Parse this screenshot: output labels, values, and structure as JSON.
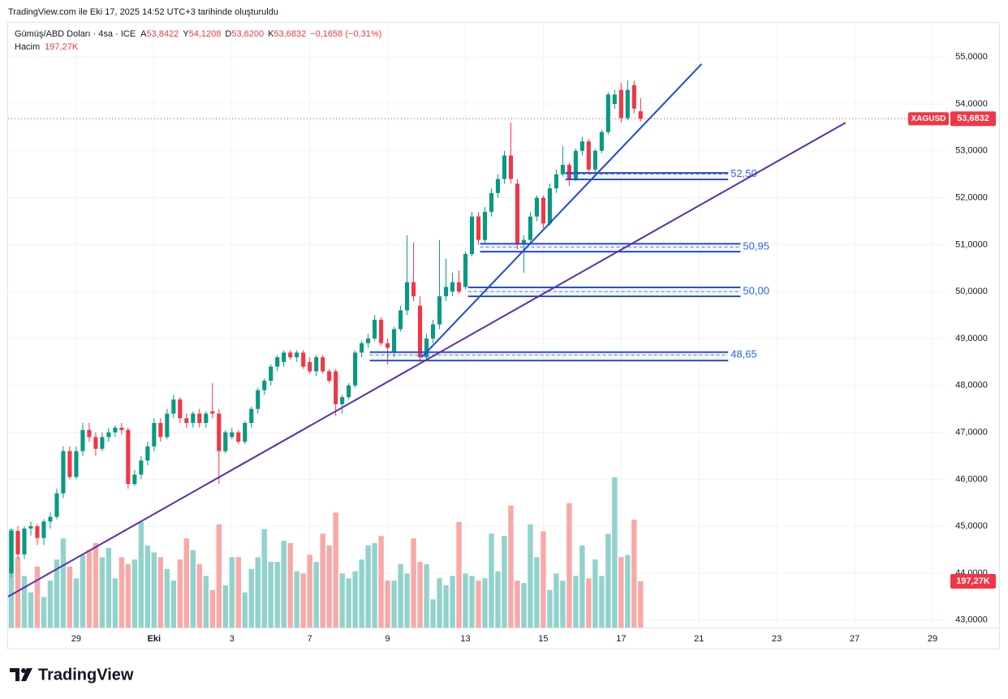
{
  "header": {
    "caption": "TradingView.com ile Eki 17, 2025 14:52 UTC+3 tarihinde oluşturuldu"
  },
  "footer": {
    "brand": "TradingView"
  },
  "chart_data": {
    "type": "candlestick",
    "legend": {
      "symbol": "Gümüş/ABD Doları · 4sa · ICE",
      "fields": [
        {
          "key": "A",
          "value": "53,8422"
        },
        {
          "key": "Y",
          "value": "54,1208"
        },
        {
          "key": "D",
          "value": "53,6200"
        },
        {
          "key": "K",
          "value": "53,6832"
        }
      ],
      "change": "−0,1658 (−0,31%)",
      "volume_key": "Hacim"
    },
    "up_color": "#089981",
    "down_color": "#f23645",
    "volume_up_color": "#92d2cc",
    "volume_down_color": "#f7a9a7",
    "candles": [
      [
        44.0,
        44.95,
        43.9,
        44.9
      ],
      [
        44.9,
        45.0,
        44.3,
        44.4
      ],
      [
        44.4,
        45.0,
        44.3,
        44.95
      ],
      [
        44.95,
        45.1,
        44.8,
        45.0
      ],
      [
        45.0,
        45.05,
        44.6,
        44.75
      ],
      [
        44.75,
        45.15,
        44.6,
        45.1
      ],
      [
        45.1,
        45.3,
        44.95,
        45.2
      ],
      [
        45.2,
        45.8,
        45.15,
        45.7
      ],
      [
        45.7,
        46.7,
        45.6,
        46.6
      ],
      [
        46.6,
        46.7,
        46.0,
        46.05
      ],
      [
        46.05,
        46.7,
        46.0,
        46.6
      ],
      [
        46.6,
        47.2,
        46.5,
        47.05
      ],
      [
        47.05,
        47.2,
        46.8,
        46.9
      ],
      [
        46.9,
        47.0,
        46.5,
        46.65
      ],
      [
        46.65,
        47.0,
        46.6,
        46.9
      ],
      [
        46.9,
        47.1,
        46.8,
        47.0
      ],
      [
        47.0,
        47.15,
        46.9,
        47.1
      ],
      [
        47.1,
        47.2,
        46.95,
        47.05
      ],
      [
        47.05,
        47.1,
        45.8,
        45.9
      ],
      [
        45.9,
        46.2,
        45.85,
        46.1
      ],
      [
        46.1,
        46.5,
        46.0,
        46.4
      ],
      [
        46.4,
        46.8,
        46.3,
        46.7
      ],
      [
        46.7,
        47.3,
        46.6,
        47.2
      ],
      [
        47.2,
        47.3,
        46.8,
        46.9
      ],
      [
        46.9,
        47.5,
        46.85,
        47.4
      ],
      [
        47.4,
        47.8,
        47.3,
        47.7
      ],
      [
        47.7,
        47.75,
        47.2,
        47.3
      ],
      [
        47.3,
        47.4,
        47.1,
        47.2
      ],
      [
        47.2,
        47.45,
        47.1,
        47.4
      ],
      [
        47.4,
        47.5,
        47.1,
        47.2
      ],
      [
        47.2,
        47.45,
        47.1,
        47.4
      ],
      [
        47.45,
        48.05,
        47.3,
        47.4
      ],
      [
        47.4,
        47.5,
        45.9,
        46.6
      ],
      [
        46.6,
        47.05,
        46.55,
        47.0
      ],
      [
        46.9,
        47.1,
        46.85,
        47.0
      ],
      [
        47.0,
        47.05,
        46.75,
        46.8
      ],
      [
        46.8,
        47.25,
        46.75,
        47.2
      ],
      [
        47.2,
        47.55,
        47.1,
        47.5
      ],
      [
        47.5,
        47.95,
        47.4,
        47.9
      ],
      [
        47.9,
        48.15,
        47.8,
        48.1
      ],
      [
        48.1,
        48.45,
        48.0,
        48.4
      ],
      [
        48.4,
        48.65,
        48.3,
        48.6
      ],
      [
        48.5,
        48.75,
        48.4,
        48.7
      ],
      [
        48.7,
        48.75,
        48.55,
        48.6
      ],
      [
        48.6,
        48.75,
        48.5,
        48.7
      ],
      [
        48.7,
        48.75,
        48.35,
        48.4
      ],
      [
        48.5,
        48.6,
        48.25,
        48.3
      ],
      [
        48.3,
        48.65,
        48.2,
        48.6
      ],
      [
        48.6,
        48.65,
        48.25,
        48.3
      ],
      [
        48.3,
        48.35,
        48.05,
        48.1
      ],
      [
        48.3,
        48.35,
        47.35,
        47.6
      ],
      [
        47.6,
        47.8,
        47.4,
        47.75
      ],
      [
        47.75,
        48.05,
        47.7,
        48.0
      ],
      [
        48.0,
        48.75,
        47.95,
        48.7
      ],
      [
        48.7,
        48.95,
        48.6,
        48.9
      ],
      [
        48.9,
        49.1,
        48.8,
        49.0
      ],
      [
        49.0,
        49.5,
        48.95,
        49.4
      ],
      [
        49.4,
        49.45,
        48.85,
        48.9
      ],
      [
        48.9,
        49.0,
        48.45,
        48.8
      ],
      [
        48.7,
        49.25,
        48.6,
        49.2
      ],
      [
        49.2,
        49.7,
        49.15,
        49.6
      ],
      [
        49.6,
        51.2,
        49.5,
        50.2
      ],
      [
        50.2,
        51.05,
        49.8,
        49.9
      ],
      [
        49.7,
        49.9,
        48.5,
        48.6
      ],
      [
        48.6,
        49.1,
        48.55,
        49.0
      ],
      [
        49.0,
        49.4,
        48.9,
        49.3
      ],
      [
        49.3,
        51.1,
        49.2,
        49.9
      ],
      [
        49.9,
        50.7,
        49.8,
        50.1
      ],
      [
        50.0,
        50.4,
        49.9,
        50.2
      ],
      [
        50.2,
        50.45,
        49.95,
        50.0
      ],
      [
        50.1,
        50.85,
        50.05,
        50.8
      ],
      [
        50.8,
        51.7,
        50.75,
        51.6
      ],
      [
        51.6,
        51.7,
        51.0,
        51.1
      ],
      [
        51.1,
        51.8,
        51.0,
        51.7
      ],
      [
        51.7,
        52.2,
        51.6,
        52.1
      ],
      [
        52.1,
        52.5,
        52.0,
        52.4
      ],
      [
        52.4,
        53.0,
        52.3,
        52.9
      ],
      [
        52.9,
        53.6,
        52.3,
        52.4
      ],
      [
        52.3,
        52.4,
        50.9,
        51.0
      ],
      [
        51.0,
        51.2,
        50.4,
        51.1
      ],
      [
        51.1,
        51.7,
        51.05,
        51.6
      ],
      [
        51.6,
        52.05,
        51.5,
        52.0
      ],
      [
        52.0,
        52.05,
        51.35,
        51.45
      ],
      [
        51.45,
        52.3,
        51.4,
        52.2
      ],
      [
        52.2,
        52.6,
        52.1,
        52.5
      ],
      [
        52.5,
        53.1,
        52.45,
        52.7
      ],
      [
        52.7,
        52.75,
        52.25,
        52.4
      ],
      [
        52.4,
        53.05,
        52.35,
        53.0
      ],
      [
        53.0,
        53.3,
        52.9,
        53.2
      ],
      [
        53.2,
        53.25,
        52.55,
        52.6
      ],
      [
        52.6,
        53.05,
        52.55,
        53.0
      ],
      [
        53.0,
        53.45,
        52.95,
        53.4
      ],
      [
        53.4,
        54.25,
        53.35,
        54.2
      ],
      [
        54.0,
        54.3,
        53.9,
        54.2
      ],
      [
        54.3,
        54.45,
        53.6,
        53.7
      ],
      [
        53.7,
        54.5,
        53.65,
        54.3
      ],
      [
        54.4,
        54.5,
        53.8,
        53.9
      ],
      [
        53.8422,
        54.1208,
        53.62,
        53.6832
      ]
    ],
    "volumes": [
      420,
      300,
      220,
      150,
      260,
      130,
      200,
      290,
      380,
      260,
      210,
      310,
      330,
      360,
      300,
      340,
      210,
      300,
      270,
      290,
      450,
      350,
      320,
      300,
      250,
      200,
      290,
      380,
      330,
      270,
      220,
      160,
      440,
      180,
      300,
      300,
      150,
      250,
      300,
      420,
      280,
      280,
      370,
      360,
      240,
      230,
      310,
      280,
      400,
      350,
      490,
      230,
      210,
      240,
      290,
      350,
      360,
      390,
      200,
      200,
      270,
      230,
      380,
      280,
      270,
      120,
      210,
      180,
      220,
      450,
      230,
      220,
      200,
      210,
      400,
      240,
      390,
      520,
      200,
      190,
      440,
      300,
      410,
      160,
      230,
      200,
      530,
      220,
      350,
      210,
      290,
      220,
      400,
      640,
      300,
      310,
      460,
      197.27
    ],
    "volume_label": "197,27K",
    "volume_ylim": [
      0,
      2578
    ],
    "xlim": [
      -0.5,
      144
    ],
    "xticks": [
      {
        "value": 10,
        "label": "29"
      },
      {
        "value": 22,
        "label": "Eki"
      },
      {
        "value": 34,
        "label": "3"
      },
      {
        "value": 46,
        "label": "7"
      },
      {
        "value": 58,
        "label": "9"
      },
      {
        "value": 70,
        "label": "13"
      },
      {
        "value": 82,
        "label": "15"
      },
      {
        "value": 94,
        "label": "17"
      },
      {
        "value": 106,
        "label": "21"
      },
      {
        "value": 118,
        "label": "23"
      },
      {
        "value": 130,
        "label": "27"
      },
      {
        "value": 142,
        "label": "29"
      }
    ],
    "ylim": [
      42.84,
      55.73
    ],
    "yticks": [
      {
        "value": 43,
        "label": "43,0000"
      },
      {
        "value": 44,
        "label": "44,0000"
      },
      {
        "value": 45,
        "label": "45,0000"
      },
      {
        "value": 46,
        "label": "46,0000"
      },
      {
        "value": 47,
        "label": "47,0000"
      },
      {
        "value": 48,
        "label": "48,0000"
      },
      {
        "value": 49,
        "label": "49,0000"
      },
      {
        "value": 50,
        "label": "50,0000"
      },
      {
        "value": 51,
        "label": "51,0000"
      },
      {
        "value": 52,
        "label": "52,0000"
      },
      {
        "value": 53,
        "label": "53,0000"
      },
      {
        "value": 54,
        "label": "54,0000"
      },
      {
        "value": 55,
        "label": "55,0000"
      }
    ],
    "grid": true,
    "last_price": {
      "symbol": "XAGUSD",
      "value": 53.6832,
      "label": "53,6832"
    },
    "trendlines": [
      {
        "color": "#1f49d6",
        "x": [
          63.25,
          106.4
        ],
        "y": [
          48.6,
          54.85
        ]
      },
      {
        "color": "#5b2fb0",
        "x": [
          -0.5,
          128.6
        ],
        "y": [
          43.5,
          53.6
        ]
      }
    ],
    "zones": [
      {
        "label": "52,50",
        "value": 52.5,
        "top": 52.53,
        "bottom": 52.39,
        "x": [
          85.4,
          110.5
        ]
      },
      {
        "label": "50,95",
        "value": 50.95,
        "top": 51.02,
        "bottom": 50.85,
        "x": [
          72.25,
          112.4
        ]
      },
      {
        "label": "50,00",
        "value": 50.0,
        "top": 50.09,
        "bottom": 49.9,
        "x": [
          70.4,
          112.4
        ]
      },
      {
        "label": "48,65",
        "value": 48.65,
        "top": 48.71,
        "bottom": 48.53,
        "x": [
          55.25,
          110.5
        ]
      }
    ],
    "zone_color": "#2a4fd6",
    "zone_label_color": "#2962ff"
  }
}
